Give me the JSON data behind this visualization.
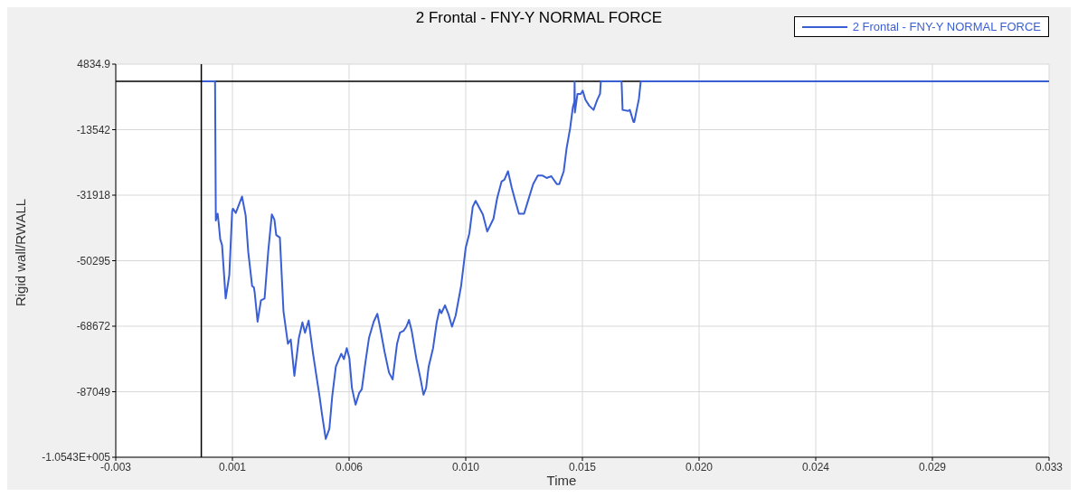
{
  "chart_data": {
    "type": "line",
    "title": "2 Frontal - FNY-Y NORMAL FORCE",
    "xlabel": "Time",
    "ylabel": "Rigid wall/RWALL",
    "xlim": [
      -0.003,
      0.033
    ],
    "xticks": [
      -0.003,
      {
        "value": 0.0015,
        "label": "0.001"
      },
      0.006,
      {
        "value": 0.0105,
        "label": "0.010"
      },
      0.015,
      {
        "value": 0.0195,
        "label": "0.020"
      },
      0.024,
      {
        "value": 0.0285,
        "label": "0.029"
      },
      0.033
    ],
    "ylim": [
      -105430,
      4834.9
    ],
    "yticks": [
      4834.9,
      -13542,
      -31918,
      -50295,
      -68672,
      -87049,
      {
        "value": -105430,
        "label": "-1.0543E+005"
      }
    ],
    "grid": true,
    "legend": "top right",
    "ref_lines": [
      {
        "axis": "x",
        "value": 0.0003,
        "color": "#000000"
      },
      {
        "axis": "y",
        "value": 0,
        "color": "#000000"
      }
    ],
    "series": [
      {
        "name": "2 Frontal - FNY-Y NORMAL FORCE",
        "color": "#3a5fd4",
        "x": [
          0.00034,
          0.00083,
          0.00086,
          0.00093,
          0.00097,
          0.00103,
          0.0011,
          0.00124,
          0.00138,
          0.00149,
          0.00152,
          0.00163,
          0.00173,
          0.00187,
          0.00201,
          0.00211,
          0.00226,
          0.00233,
          0.00236,
          0.00247,
          0.0026,
          0.00274,
          0.00288,
          0.00302,
          0.00312,
          0.00319,
          0.00333,
          0.00347,
          0.00364,
          0.00375,
          0.00389,
          0.00406,
          0.0042,
          0.0043,
          0.00444,
          0.00461,
          0.00475,
          0.00486,
          0.00496,
          0.0051,
          0.00524,
          0.00535,
          0.00549,
          0.0057,
          0.0058,
          0.00591,
          0.00601,
          0.00611,
          0.00625,
          0.00639,
          0.00649,
          0.00663,
          0.00677,
          0.00695,
          0.00709,
          0.00719,
          0.00737,
          0.00754,
          0.00768,
          0.00785,
          0.00796,
          0.0081,
          0.00821,
          0.00831,
          0.00841,
          0.00859,
          0.00876,
          0.00887,
          0.00897,
          0.00907,
          0.00924,
          0.00938,
          0.00949,
          0.00956,
          0.0097,
          0.00983,
          0.00997,
          0.01011,
          0.01022,
          0.01032,
          0.0105,
          0.01064,
          0.01077,
          0.01088,
          0.01116,
          0.01133,
          0.01157,
          0.01171,
          0.01188,
          0.01199,
          0.01213,
          0.01227,
          0.01241,
          0.01255,
          0.01275,
          0.01289,
          0.0131,
          0.01328,
          0.01345,
          0.01362,
          0.0138,
          0.01401,
          0.01411,
          0.01428,
          0.01439,
          0.01453,
          0.01463,
          0.01469,
          0.0147,
          0.01471,
          0.01481,
          0.01494,
          0.01501,
          0.01512,
          0.01526,
          0.01543,
          0.01557,
          0.01568,
          0.01571,
          0.01651,
          0.01655,
          0.01676,
          0.01683,
          0.01697,
          0.017,
          0.01718,
          0.01725,
          0.033
        ],
        "values": [
          0,
          0,
          -39000,
          -37100,
          -39700,
          -44300,
          -45900,
          -60900,
          -54300,
          -36400,
          -35700,
          -36900,
          -35000,
          -32300,
          -37600,
          -47800,
          -57400,
          -57800,
          -59300,
          -67400,
          -61400,
          -60900,
          -47800,
          -37300,
          -38800,
          -43100,
          -43800,
          -64500,
          -73600,
          -72400,
          -82600,
          -72100,
          -67600,
          -70500,
          -67100,
          -76400,
          -83100,
          -88300,
          -93600,
          -100300,
          -97400,
          -88300,
          -80000,
          -76400,
          -77900,
          -74800,
          -77600,
          -86000,
          -90700,
          -87400,
          -86400,
          -78800,
          -71900,
          -67400,
          -65200,
          -68800,
          -75900,
          -81700,
          -83600,
          -73600,
          -70500,
          -70000,
          -68800,
          -66900,
          -69800,
          -77600,
          -83600,
          -87900,
          -86000,
          -80000,
          -74800,
          -67600,
          -64000,
          -65000,
          -62800,
          -65200,
          -68800,
          -65700,
          -61400,
          -57400,
          -46600,
          -42600,
          -35200,
          -33500,
          -37300,
          -42100,
          -38500,
          -32800,
          -28100,
          -27600,
          -25200,
          -29700,
          -33500,
          -37100,
          -37100,
          -33800,
          -28800,
          -26400,
          -26400,
          -27100,
          -26600,
          -28800,
          -28800,
          -25200,
          -18800,
          -13000,
          -7300,
          -5700,
          0,
          -8700,
          -3500,
          -3500,
          -2600,
          -5200,
          -6800,
          -8000,
          -5200,
          -3500,
          0,
          0,
          -8000,
          -8300,
          -8000,
          -11400,
          -11400,
          -4900,
          0,
          0
        ]
      }
    ]
  }
}
